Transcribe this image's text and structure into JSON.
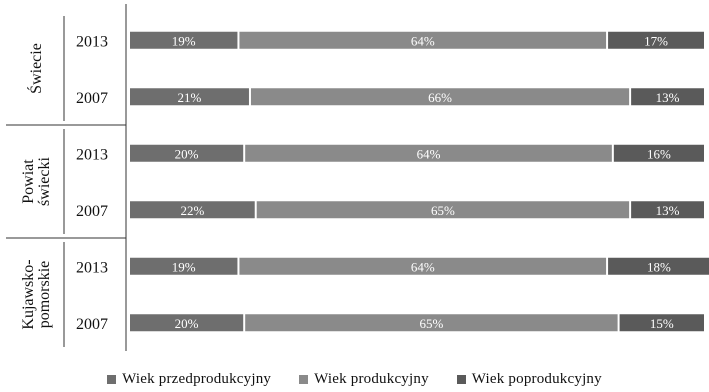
{
  "chart_data": {
    "type": "bar",
    "orientation": "horizontal",
    "stacked": true,
    "percent": true,
    "groups": [
      {
        "label": "Świecie",
        "years": [
          "2013",
          "2007"
        ]
      },
      {
        "label": "Powiat świecki",
        "years": [
          "2013",
          "2007"
        ]
      },
      {
        "label": "Kujawsko-pomorskie",
        "years": [
          "2013",
          "2007"
        ]
      }
    ],
    "categories": [
      "Świecie 2013",
      "Świecie 2007",
      "Powiat świecki 2013",
      "Powiat świecki 2007",
      "Kujawsko-pomorskie 2013",
      "Kujawsko-pomorskie 2007"
    ],
    "series": [
      {
        "name": "Wiek przedprodukcyjny",
        "values": [
          19,
          21,
          20,
          22,
          19,
          20
        ],
        "labels": [
          "19%",
          "21%",
          "20%",
          "22%",
          "19%",
          "20%"
        ]
      },
      {
        "name": "Wiek produkcyjny",
        "values": [
          64,
          66,
          64,
          65,
          64,
          65
        ],
        "labels": [
          "64%",
          "66%",
          "64%",
          "65%",
          "64%",
          "65%"
        ]
      },
      {
        "name": "Wiek poprodukcyjny",
        "values": [
          17,
          13,
          16,
          13,
          18,
          15
        ],
        "labels": [
          "17%",
          "13%",
          "16%",
          "13%",
          "18%",
          "15%"
        ]
      }
    ],
    "colors": [
      "#6e6e6e",
      "#8a8a8a",
      "#5a5a5a"
    ],
    "xlim": [
      0,
      100
    ],
    "grid": false,
    "legend_position": "bottom"
  }
}
